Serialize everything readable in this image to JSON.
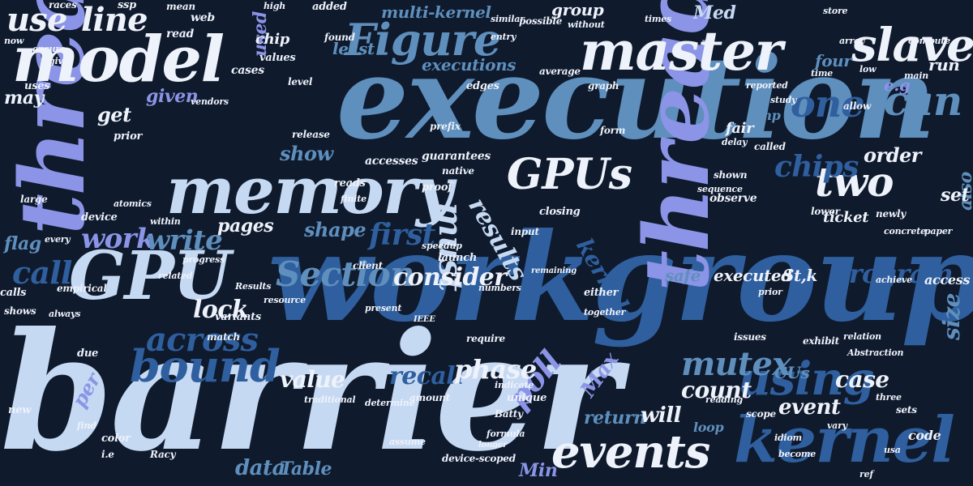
{
  "colors": {
    "background": "#0f1a2c",
    "white": "#eef2fb",
    "pale_blue": "#c6d9f3",
    "periwinkle": "#8b94e6",
    "steel_blue": "#5f8fbd",
    "navy_blue": "#2f5f9e",
    "lavender": "#7a86dc"
  },
  "words": [
    {
      "text": "barrier",
      "c": 1
    },
    {
      "text": "workgroup",
      "c": 4
    },
    {
      "text": "execution",
      "c": 3
    },
    {
      "text": "threads",
      "c": 2
    },
    {
      "text": "thread",
      "c": 2
    },
    {
      "text": "memory",
      "c": 1
    },
    {
      "text": "model",
      "c": 0
    },
    {
      "text": "GPU",
      "c": 1
    },
    {
      "text": "master",
      "c": 0
    },
    {
      "text": "kernel",
      "c": 4
    },
    {
      "text": "slave",
      "c": 0
    },
    {
      "text": "Figure",
      "c": 3
    },
    {
      "text": "GPUs",
      "c": 0
    },
    {
      "text": "using",
      "c": 4
    },
    {
      "text": "events",
      "c": 0
    },
    {
      "text": "bound",
      "c": 4
    },
    {
      "text": "across",
      "c": 4
    },
    {
      "text": "Section",
      "c": 3
    },
    {
      "text": "mutex",
      "c": 3
    },
    {
      "text": "two",
      "c": 0
    },
    {
      "text": "one",
      "c": 4
    },
    {
      "text": "can",
      "c": 3
    },
    {
      "text": "use",
      "c": 0
    },
    {
      "text": "line",
      "c": 0
    },
    {
      "text": "must",
      "c": 1
    },
    {
      "text": "chips",
      "c": 4
    },
    {
      "text": "poll",
      "c": 2
    },
    {
      "text": "work",
      "c": 2
    },
    {
      "text": "write",
      "c": 3
    },
    {
      "text": "call",
      "c": 4
    },
    {
      "text": "first",
      "c": 4
    },
    {
      "text": "lock",
      "c": 0
    },
    {
      "text": "consider",
      "c": 0
    },
    {
      "text": "program",
      "c": 4
    },
    {
      "text": "value",
      "c": 0
    },
    {
      "text": "recall",
      "c": 4
    },
    {
      "text": "phase",
      "c": 0
    },
    {
      "text": "results",
      "c": 1
    },
    {
      "text": "kernels",
      "c": 4
    },
    {
      "text": "case",
      "c": 0
    },
    {
      "text": "count",
      "c": 0
    },
    {
      "text": "event",
      "c": 0
    },
    {
      "text": "size",
      "c": 3
    },
    {
      "text": "data",
      "c": 3
    },
    {
      "text": "Table",
      "c": 3
    },
    {
      "text": "Max",
      "c": 2
    },
    {
      "text": "Min",
      "c": 2
    },
    {
      "text": "return",
      "c": 3
    },
    {
      "text": "will",
      "c": 0
    },
    {
      "text": "shape",
      "c": 3
    },
    {
      "text": "pages",
      "c": 0
    },
    {
      "text": "show",
      "c": 3
    },
    {
      "text": "get",
      "c": 0
    },
    {
      "text": "given",
      "c": 2
    },
    {
      "text": "executions",
      "c": 3
    },
    {
      "text": "multi-kernel",
      "c": 3
    },
    {
      "text": "group",
      "c": 0
    },
    {
      "text": "least",
      "c": 3
    },
    {
      "text": "four",
      "c": 3
    },
    {
      "text": "order",
      "c": 0
    },
    {
      "text": "executed",
      "c": 0
    },
    {
      "text": "St,k",
      "c": 0
    },
    {
      "text": "per",
      "c": 2
    },
    {
      "text": "also",
      "c": 3
    },
    {
      "text": "set",
      "c": 0
    },
    {
      "text": "flag",
      "c": 3
    },
    {
      "text": "safe",
      "c": 3
    },
    {
      "text": "CUs",
      "c": 3
    },
    {
      "text": "may",
      "c": 0
    },
    {
      "text": "used",
      "c": 2
    },
    {
      "text": "Med",
      "c": 1
    },
    {
      "text": "run",
      "c": 0
    },
    {
      "text": "e.g",
      "c": 2
    },
    {
      "text": "mp",
      "c": 3
    },
    {
      "text": "access",
      "c": 0
    },
    {
      "text": "fair",
      "c": 0
    },
    {
      "text": "code",
      "c": 0
    },
    {
      "text": "loop",
      "c": 3
    },
    {
      "text": "ticket",
      "c": 0
    },
    {
      "text": "chip",
      "c": 0
    },
    {
      "text": "accesses",
      "c": 0
    },
    {
      "text": "guarantees",
      "c": 0
    },
    {
      "text": "native",
      "c": 0
    },
    {
      "text": "reads",
      "c": 0
    },
    {
      "text": "proof",
      "c": 0
    },
    {
      "text": "release",
      "c": 0
    },
    {
      "text": "prior",
      "c": 0
    },
    {
      "text": "uses",
      "c": 0
    },
    {
      "text": "cases",
      "c": 0
    },
    {
      "text": "values",
      "c": 0
    },
    {
      "text": "level",
      "c": 0
    },
    {
      "text": "read",
      "c": 0
    },
    {
      "text": "web",
      "c": 0
    },
    {
      "text": "mean",
      "c": 0
    },
    {
      "text": "races",
      "c": 0
    },
    {
      "text": "ssp",
      "c": 0
    },
    {
      "text": "high",
      "c": 0
    },
    {
      "text": "added",
      "c": 0
    },
    {
      "text": "found",
      "c": 0
    },
    {
      "text": "entry",
      "c": 0
    },
    {
      "text": "average",
      "c": 0
    },
    {
      "text": "graph",
      "c": 0
    },
    {
      "text": "called",
      "c": 0
    },
    {
      "text": "shown",
      "c": 0
    },
    {
      "text": "sequence",
      "c": 0
    },
    {
      "text": "closing",
      "c": 0
    },
    {
      "text": "input",
      "c": 0
    },
    {
      "text": "launch",
      "c": 0
    },
    {
      "text": "speedup",
      "c": 0
    },
    {
      "text": "client",
      "c": 0
    },
    {
      "text": "device",
      "c": 0
    },
    {
      "text": "atomics",
      "c": 0
    },
    {
      "text": "variants",
      "c": 0
    },
    {
      "text": "match",
      "c": 0
    },
    {
      "text": "due",
      "c": 0
    },
    {
      "text": "calls",
      "c": 0
    },
    {
      "text": "shows",
      "c": 0
    },
    {
      "text": "always",
      "c": 0
    },
    {
      "text": "color",
      "c": 0
    },
    {
      "text": "i.e",
      "c": 0
    },
    {
      "text": "new",
      "c": 0
    },
    {
      "text": "determine",
      "c": 0
    },
    {
      "text": "traditional",
      "c": 0
    },
    {
      "text": "amount",
      "c": 0
    },
    {
      "text": "unique",
      "c": 0
    },
    {
      "text": "indicate",
      "c": 0
    },
    {
      "text": "require",
      "c": 0
    },
    {
      "text": "either",
      "c": 0
    },
    {
      "text": "issues",
      "c": 0
    },
    {
      "text": "exhibit",
      "c": 0
    },
    {
      "text": "scope",
      "c": 0
    },
    {
      "text": "sets",
      "c": 0
    },
    {
      "text": "three",
      "c": 0
    },
    {
      "text": "compute",
      "c": 0
    },
    {
      "text": "allow",
      "c": 0
    },
    {
      "text": "lower",
      "c": 0
    },
    {
      "text": "newly",
      "c": 0
    },
    {
      "text": "paper",
      "c": 0
    },
    {
      "text": "observe",
      "c": 0
    },
    {
      "text": "edges",
      "c": 0
    },
    {
      "text": "prefix",
      "c": 0
    },
    {
      "text": "form",
      "c": 0
    },
    {
      "text": "delay",
      "c": 0
    },
    {
      "text": "store",
      "c": 0
    },
    {
      "text": "array",
      "c": 0
    },
    {
      "text": "time",
      "c": 0
    },
    {
      "text": "main",
      "c": 0
    },
    {
      "text": "low",
      "c": 0
    },
    {
      "text": "reported",
      "c": 0
    },
    {
      "text": "study",
      "c": 0
    },
    {
      "text": "now",
      "c": 0
    },
    {
      "text": "ensure",
      "c": 0
    },
    {
      "text": "gives",
      "c": 0
    },
    {
      "text": "possible",
      "c": 0
    },
    {
      "text": "similar",
      "c": 0
    },
    {
      "text": "times",
      "c": 0
    },
    {
      "text": "without",
      "c": 0
    },
    {
      "text": "empirical",
      "c": 0
    },
    {
      "text": "Results",
      "c": 0
    },
    {
      "text": "large",
      "c": 0
    },
    {
      "text": "every",
      "c": 0
    },
    {
      "text": "within",
      "c": 0
    },
    {
      "text": "related",
      "c": 0
    },
    {
      "text": "progress",
      "c": 0
    },
    {
      "text": "resource",
      "c": 0
    },
    {
      "text": "numbers",
      "c": 0
    },
    {
      "text": "present",
      "c": 0
    },
    {
      "text": "IEEE",
      "c": 0
    },
    {
      "text": "device-scoped",
      "c": 0
    },
    {
      "text": "formula",
      "c": 0
    },
    {
      "text": "Batty",
      "c": 0
    },
    {
      "text": "relation",
      "c": 0
    },
    {
      "text": "Abstraction",
      "c": 0
    },
    {
      "text": "concrete",
      "c": 0
    },
    {
      "text": "achieve",
      "c": 0
    },
    {
      "text": "prior",
      "c": 0
    },
    {
      "text": "vendors",
      "c": 0
    },
    {
      "text": "finite",
      "c": 0
    },
    {
      "text": "together",
      "c": 0
    },
    {
      "text": "remaining",
      "c": 0
    },
    {
      "text": "idiom",
      "c": 0
    },
    {
      "text": "become",
      "c": 0
    },
    {
      "text": "vary",
      "c": 0
    },
    {
      "text": "reading",
      "c": 0
    },
    {
      "text": "longer",
      "c": 0
    },
    {
      "text": "assume",
      "c": 0
    },
    {
      "text": "Racy",
      "c": 0
    },
    {
      "text": "find",
      "c": 0
    },
    {
      "text": "usa",
      "c": 0
    },
    {
      "text": "ref",
      "c": 0
    }
  ]
}
